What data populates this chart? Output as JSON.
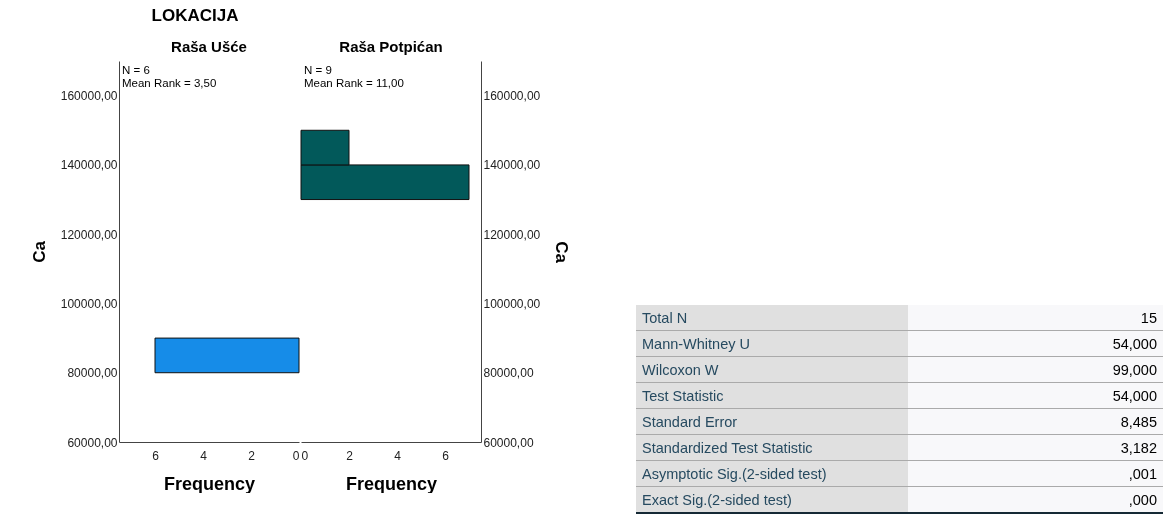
{
  "chart_data": [
    {
      "type": "histogram",
      "title": "LOKACIJA",
      "subtitle": "Raša Ušće",
      "orientation": "horizontal",
      "bins": [
        80000,
        90000
      ],
      "values": [
        6
      ],
      "colors": [
        "#168ce8"
      ],
      "xlabel": "Frequency",
      "ylabel": "Ca",
      "xlim": [
        7.5,
        0
      ],
      "xticks": [
        6,
        4,
        2,
        0
      ],
      "ylim": [
        60000,
        170000
      ],
      "yticks": [
        {
          "value": 60000,
          "label": "60000,00"
        },
        {
          "value": 80000,
          "label": "80000,00"
        },
        {
          "value": 100000,
          "label": "100000,00"
        },
        {
          "value": 120000,
          "label": "120000,00"
        },
        {
          "value": 140000,
          "label": "140000,00"
        },
        {
          "value": 160000,
          "label": "160000,00"
        }
      ],
      "annotations": [
        "N = 6",
        "Mean Rank = 3,50"
      ]
    },
    {
      "type": "histogram",
      "subtitle": "Raša Potpićan",
      "orientation": "horizontal",
      "bins": [
        130000,
        140000,
        150000
      ],
      "values": [
        7,
        2
      ],
      "colors": [
        "#02595a",
        "#02595a"
      ],
      "xlabel": "Frequency",
      "ylabel": "Ca",
      "xlim": [
        0,
        7.5
      ],
      "xticks": [
        0,
        2,
        4,
        6
      ],
      "ylim": [
        60000,
        170000
      ],
      "yticks": [
        {
          "value": 60000,
          "label": "60000,00"
        },
        {
          "value": 80000,
          "label": "80000,00"
        },
        {
          "value": 100000,
          "label": "100000,00"
        },
        {
          "value": 120000,
          "label": "120000,00"
        },
        {
          "value": 140000,
          "label": "140000,00"
        },
        {
          "value": 160000,
          "label": "160000,00"
        }
      ],
      "annotations": [
        "N = 9",
        "Mean Rank = 11,00"
      ]
    },
    {
      "type": "other",
      "annotations": [
        "Total N",
        "15",
        "Mann-Whitney U",
        "54,000",
        "Wilcoxon W",
        "99,000",
        "Test Statistic",
        "54,000",
        "Standard Error",
        "8,485",
        "Standardized Test Statistic",
        "3,182",
        "Asymptotic Sig.(2-sided test)",
        ",001",
        "Exact Sig.(2-sided test)",
        ",000"
      ]
    }
  ]
}
